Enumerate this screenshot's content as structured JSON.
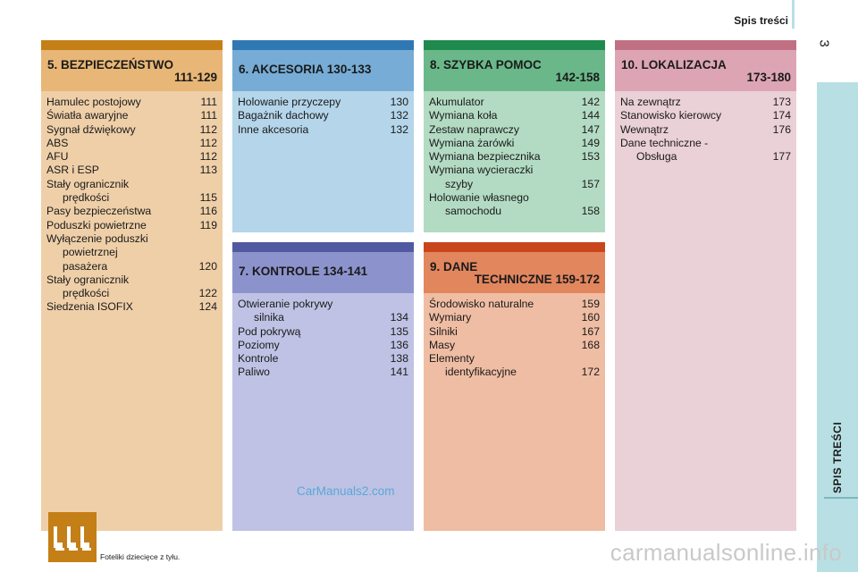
{
  "header": {
    "title": "Spis treści",
    "page_number": "3"
  },
  "side_tab": {
    "label": "SPIS TREŚCI"
  },
  "sections": {
    "s5": {
      "number": "5.",
      "title": "BEZPIECZEŃSTWO",
      "range": "111-129",
      "entries": [
        {
          "t": "Hamulec postojowy",
          "p": "111"
        },
        {
          "t": "Światła awaryjne",
          "p": "111"
        },
        {
          "t": "Sygnał dźwiękowy",
          "p": "112"
        },
        {
          "t": "ABS",
          "p": "112"
        },
        {
          "t": "AFU",
          "p": "112"
        },
        {
          "t": "ASR i ESP",
          "p": "113"
        },
        {
          "t": "Stały ogranicznik",
          "t2": "prędkości",
          "p": "115"
        },
        {
          "t": "Pasy bezpieczeństwa",
          "p": "116"
        },
        {
          "t": "Poduszki powietrzne",
          "p": "119"
        },
        {
          "t": "Wyłączenie poduszki",
          "t2": "powietrznej",
          "t3": "pasażera",
          "p": "120"
        },
        {
          "t": "Stały ogranicznik",
          "t2": "prędkości",
          "p": "122"
        },
        {
          "t": "Siedzenia ISOFIX",
          "p": "124"
        }
      ],
      "seat_icon": "child-seats-icon",
      "seat_caption": "Foteliki dziecięce z tyłu."
    },
    "s6": {
      "number": "6.",
      "title": "AKCESORIA",
      "range": "130-133",
      "entries": [
        {
          "t": "Holowanie przyczepy",
          "p": "130"
        },
        {
          "t": "Bagażnik dachowy",
          "p": "132"
        },
        {
          "t": "Inne akcesoria",
          "p": "132"
        }
      ]
    },
    "s7": {
      "number": "7.",
      "title": "KONTROLE",
      "range": "134-141",
      "entries": [
        {
          "t": "Otwieranie pokrywy",
          "t2": "silnika",
          "p": "134"
        },
        {
          "t": "Pod pokrywą",
          "p": "135"
        },
        {
          "t": "Poziomy",
          "p": "136"
        },
        {
          "t": "Kontrole",
          "p": "138"
        },
        {
          "t": "Paliwo",
          "p": "141"
        }
      ]
    },
    "s8": {
      "number": "8.",
      "title": "SZYBKA POMOC",
      "range": "142-158",
      "entries": [
        {
          "t": "Akumulator",
          "p": "142"
        },
        {
          "t": "Wymiana koła",
          "p": "144"
        },
        {
          "t": "Zestaw naprawczy",
          "p": "147"
        },
        {
          "t": "Wymiana żarówki",
          "p": "149"
        },
        {
          "t": "Wymiana bezpiecznika",
          "p": "153"
        },
        {
          "t": "Wymiana wycieraczki",
          "t2": "szyby",
          "p": "157"
        },
        {
          "t": "Holowanie własnego",
          "t2": "samochodu",
          "p": "158"
        }
      ]
    },
    "s9": {
      "number": "9.",
      "title": "DANE",
      "title2": "TECHNICZNE",
      "range": "159-172",
      "entries": [
        {
          "t": "Środowisko naturalne",
          "p": "159"
        },
        {
          "t": "Wymiary",
          "p": "160"
        },
        {
          "t": "Silniki",
          "p": "167"
        },
        {
          "t": "Masy",
          "p": "168"
        },
        {
          "t": "Elementy",
          "t2": "identyfikacyjne",
          "p": "172"
        }
      ]
    },
    "s10": {
      "number": "10.",
      "title": "LOKALIZACJA",
      "range": "173-180",
      "entries": [
        {
          "t": "Na zewnątrz",
          "p": "173"
        },
        {
          "t": "Stanowisko kierowcy",
          "p": "174"
        },
        {
          "t": "Wewnątrz",
          "p": "176"
        },
        {
          "t": "Dane techniczne -",
          "t2": "Obsługa",
          "p": "177"
        }
      ]
    }
  },
  "watermarks": {
    "carmanuals": "CarManuals2.com",
    "site": "carmanualsonline.info"
  },
  "colors": {
    "s5": "#c47f16",
    "s6": "#2f78b4",
    "s7": "#515aa0",
    "s8": "#1f8a4d",
    "s9": "#c9461c",
    "s10": "#c07082",
    "side_tab": "#b8e0e4"
  }
}
